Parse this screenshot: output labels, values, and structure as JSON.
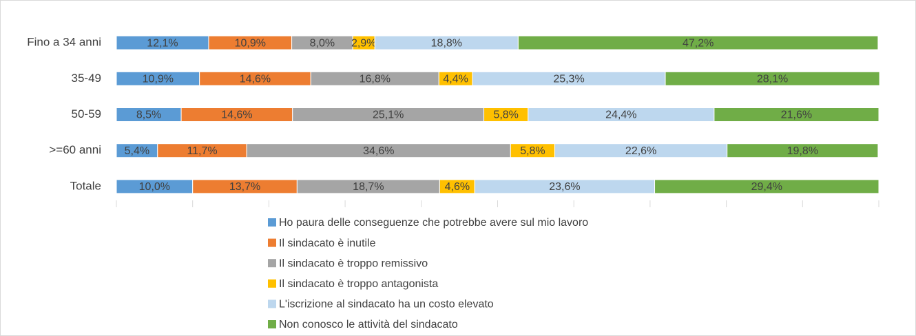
{
  "chart_data": {
    "type": "stacked_barh",
    "categories": [
      "Fino a 34 anni",
      "35-49",
      "50-59",
      ">=60 anni",
      "Totale"
    ],
    "xlim": [
      0,
      100
    ],
    "xticks": [
      0,
      10,
      20,
      30,
      40,
      50,
      60,
      70,
      80,
      90,
      100
    ],
    "legend": "bottom",
    "series": [
      {
        "name": "Ho paura delle conseguenze che potrebbe avere sul mio lavoro",
        "color": "#5b9bd5",
        "values": [
          12.1,
          10.9,
          8.5,
          5.4,
          10.0
        ],
        "value_labels": [
          "12,1%",
          "10,9%",
          "8,5%",
          "5,4%",
          "10,0%"
        ]
      },
      {
        "name": "Il sindacato è inutile",
        "color": "#ed7d31",
        "values": [
          10.9,
          14.6,
          14.6,
          11.7,
          13.7
        ],
        "value_labels": [
          "10,9%",
          "14,6%",
          "14,6%",
          "11,7%",
          "13,7%"
        ]
      },
      {
        "name": "Il sindacato è troppo remissivo",
        "color": "#a5a5a5",
        "values": [
          8.0,
          16.8,
          25.1,
          34.6,
          18.7
        ],
        "value_labels": [
          "8,0%",
          "16,8%",
          "25,1%",
          "34,6%",
          "18,7%"
        ]
      },
      {
        "name": "Il sindacato è troppo antagonista",
        "color": "#ffc000",
        "values": [
          2.9,
          4.4,
          5.8,
          5.8,
          4.6
        ],
        "value_labels": [
          "2,9%",
          "4,4%",
          "5,8%",
          "5,8%",
          "4,6%"
        ]
      },
      {
        "name": "L'iscrizione al sindacato ha un costo elevato",
        "color": "#bdd7ee",
        "values": [
          18.8,
          25.3,
          24.4,
          22.6,
          23.6
        ],
        "value_labels": [
          "18,8%",
          "25,3%",
          "24,4%",
          "22,6%",
          "23,6%"
        ]
      },
      {
        "name": "Non conosco le attività del sindacato",
        "color": "#70ad47",
        "values": [
          47.2,
          28.1,
          21.6,
          19.8,
          29.4
        ],
        "value_labels": [
          "47,2%",
          "28,1%",
          "21,6%",
          "19,8%",
          "29,4%"
        ]
      }
    ]
  }
}
